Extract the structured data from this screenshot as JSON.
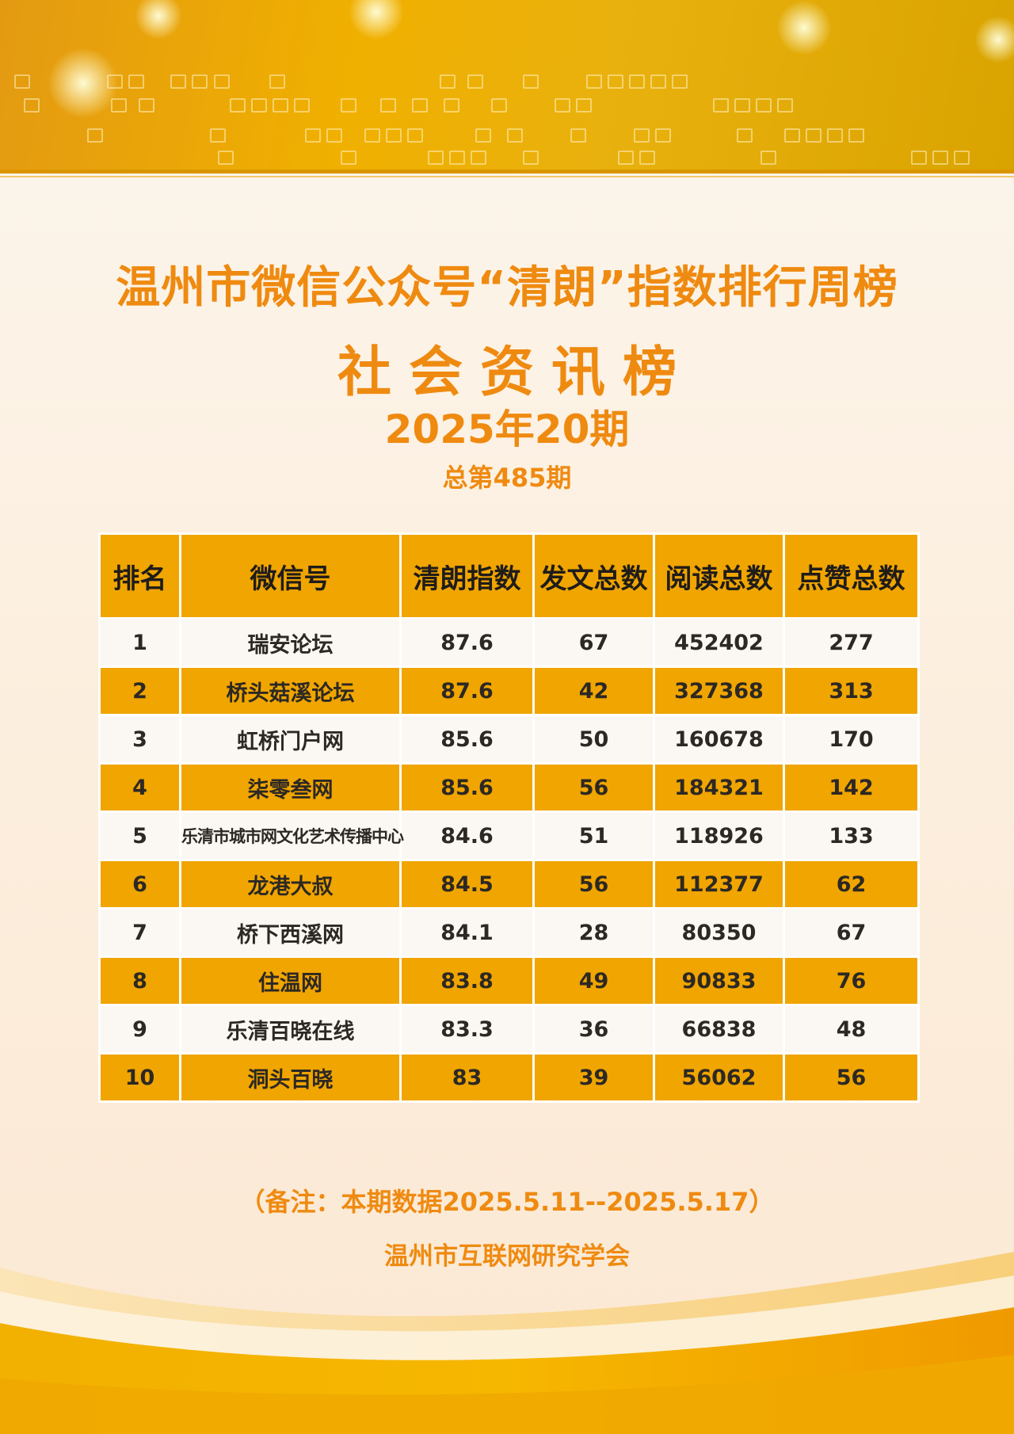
{
  "header": {
    "title": "温州市微信公众号“清朗”指数排行周榜",
    "subtitle": "社会资讯榜",
    "issue": "2025年20期",
    "total_issue": "总第485期"
  },
  "table": {
    "columns": [
      "排名",
      "微信号",
      "清朗指数",
      "发文总数",
      "阅读总数",
      "点赞总数"
    ],
    "rows": [
      [
        "1",
        "瑞安论坛",
        "87.6",
        "67",
        "452402",
        "277"
      ],
      [
        "2",
        "桥头菇溪论坛",
        "87.6",
        "42",
        "327368",
        "313"
      ],
      [
        "3",
        "虹桥门户网",
        "85.6",
        "50",
        "160678",
        "170"
      ],
      [
        "4",
        "柒零叁网",
        "85.6",
        "56",
        "184321",
        "142"
      ],
      [
        "5",
        "乐清市城市网文化艺术传播中心",
        "84.6",
        "51",
        "118926",
        "133"
      ],
      [
        "6",
        "龙港大叔",
        "84.5",
        "56",
        "112377",
        "62"
      ],
      [
        "7",
        "桥下西溪网",
        "84.1",
        "28",
        "80350",
        "67"
      ],
      [
        "8",
        "住温网",
        "83.8",
        "49",
        "90833",
        "76"
      ],
      [
        "9",
        "乐清百晓在线",
        "83.3",
        "36",
        "66838",
        "48"
      ],
      [
        "10",
        "洞头百晓",
        "83",
        "39",
        "56062",
        "56"
      ]
    ]
  },
  "footer": {
    "note": "（备注：本期数据2025.5.11--2025.5.17）",
    "organization": "温州市互联网研究学会"
  },
  "colors": {
    "accent_orange": "#ef8a10",
    "table_gold": "#f0a500",
    "banner_gold": "#f0b000"
  }
}
